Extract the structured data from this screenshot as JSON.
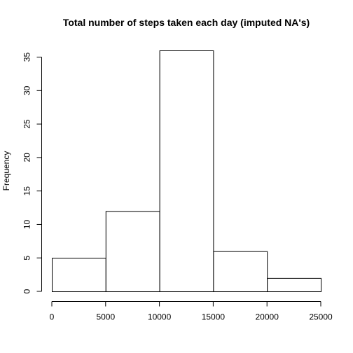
{
  "chart_data": {
    "type": "bar",
    "title": "Total number of steps taken each day (imputed NA's)",
    "xlabel": "",
    "ylabel": "Frequency",
    "bins": [
      {
        "from": 0,
        "to": 5000,
        "count": 5
      },
      {
        "from": 5000,
        "to": 10000,
        "count": 12
      },
      {
        "from": 10000,
        "to": 15000,
        "count": 36
      },
      {
        "from": 15000,
        "to": 20000,
        "count": 6
      },
      {
        "from": 20000,
        "to": 25000,
        "count": 2
      }
    ],
    "x_ticks": [
      0,
      5000,
      10000,
      15000,
      20000,
      25000
    ],
    "y_ticks": [
      0,
      5,
      10,
      15,
      20,
      25,
      30,
      35
    ],
    "xlim": [
      0,
      25000
    ],
    "ylim": [
      0,
      36
    ],
    "grid": false,
    "legend": "none",
    "bar_fill": "#ffffff",
    "bar_stroke": "#000000"
  }
}
